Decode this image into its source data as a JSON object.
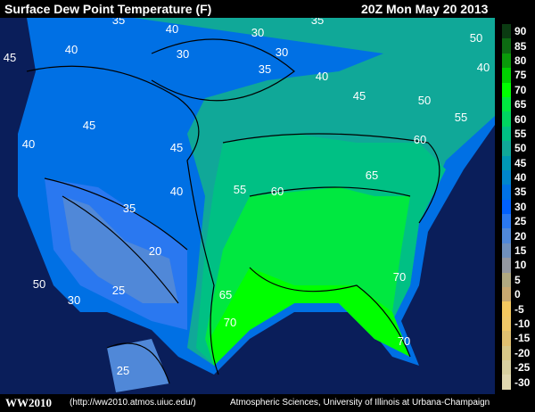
{
  "header": {
    "title": "Surface Dew Point Temperature (F)",
    "valid_time": "20Z Mon May 20 2013"
  },
  "legend": {
    "labels": [
      "90",
      "85",
      "80",
      "75",
      "70",
      "65",
      "60",
      "55",
      "50",
      "45",
      "40",
      "35",
      "30",
      "25",
      "20",
      "15",
      "10",
      "5",
      "0",
      "-5",
      "-10",
      "-15",
      "-20",
      "-25",
      "-30"
    ],
    "colors": [
      "#0b3b12",
      "#0d6b12",
      "#0a9a0a",
      "#00d000",
      "#00ff00",
      "#00e840",
      "#00d460",
      "#00c084",
      "#10a898",
      "#0098b4",
      "#0086cc",
      "#0072e4",
      "#0060ff",
      "#2a78f0",
      "#5088d8",
      "#7090bc",
      "#9498a0",
      "#b0a880",
      "#c8a870",
      "#f4c860",
      "#f0c868",
      "#e0c070",
      "#d8c888",
      "#d8d0a0",
      "#e0d8b0"
    ]
  },
  "contour_labels": [
    "35",
    "40",
    "30",
    "30",
    "35",
    "45",
    "40",
    "30",
    "35",
    "40",
    "45",
    "50",
    "55",
    "40",
    "50",
    "45",
    "60",
    "65",
    "40",
    "45",
    "40",
    "55",
    "60",
    "35",
    "20",
    "50",
    "30",
    "25",
    "65",
    "70",
    "70",
    "70",
    "25"
  ],
  "colors": {
    "ocean": "#0a1e5a",
    "contour": "#000000"
  },
  "footer": {
    "brand": "WW2010",
    "url": "(http://ww2010.atmos.uiuc.edu/)",
    "credit": "Atmospheric Sciences, University of Illinois at Urbana-Champaign"
  }
}
